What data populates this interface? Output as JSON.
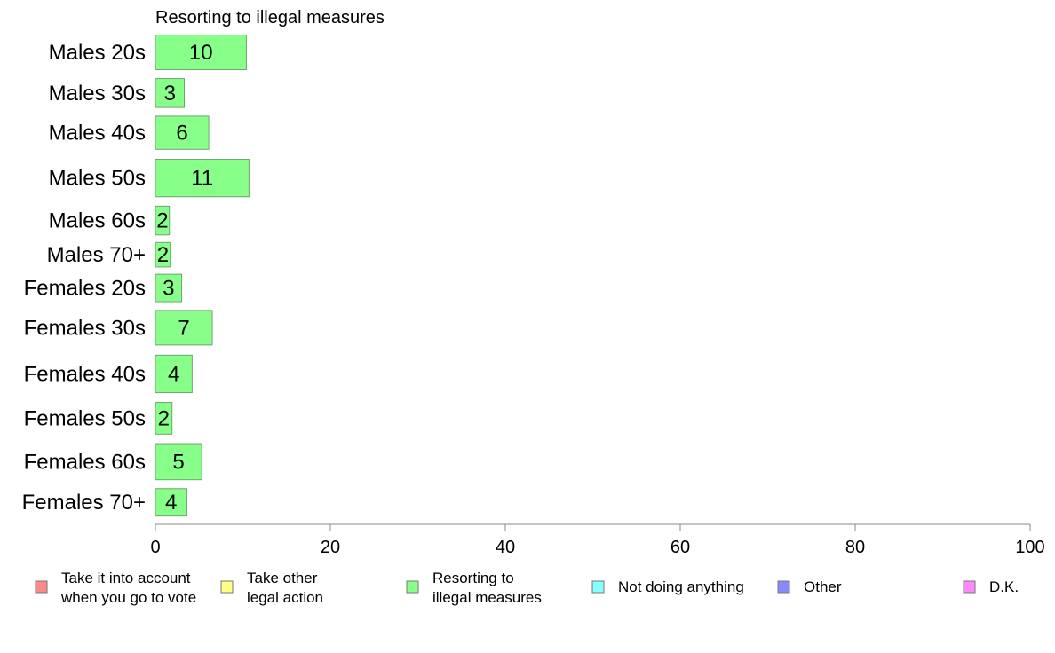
{
  "chart_data": {
    "type": "bar",
    "orientation": "horizontal",
    "title": "Resorting to illegal measures",
    "categories": [
      "Males 20s",
      "Males 30s",
      "Males 40s",
      "Males 50s",
      "Males 60s",
      "Males 70+",
      "Females 20s",
      "Females 30s",
      "Females 40s",
      "Females 50s",
      "Females 60s",
      "Females 70+"
    ],
    "series": [
      {
        "name": "Resorting to illegal measures",
        "color": "#88ff88",
        "values": [
          10.4,
          3.3,
          6.1,
          10.7,
          1.6,
          1.7,
          3.0,
          6.5,
          4.2,
          1.9,
          5.3,
          3.6
        ],
        "labels": [
          "10",
          "3",
          "6",
          "11",
          "2",
          "2",
          "3",
          "7",
          "4",
          "2",
          "5",
          "4"
        ]
      }
    ],
    "row_weights": [
      1.2,
      1.0,
      1.15,
      1.3,
      1.0,
      0.85,
      0.95,
      1.2,
      1.3,
      1.1,
      1.25,
      0.95
    ],
    "xlim": [
      0,
      100
    ],
    "xticks": [
      "0",
      "20",
      "40",
      "60",
      "80",
      "100"
    ],
    "xlabel": "",
    "ylabel": "",
    "grid": false,
    "legend": {
      "placement": "bottom",
      "items": [
        {
          "lines": [
            "Take it into account",
            "when you go to vote"
          ],
          "color": "#ff8888"
        },
        {
          "lines": [
            "Take other",
            "legal action"
          ],
          "color": "#ffff88"
        },
        {
          "lines": [
            "Resorting to",
            "illegal measures"
          ],
          "color": "#88ff88"
        },
        {
          "lines": [
            "Not doing anything"
          ],
          "color": "#88ffff"
        },
        {
          "lines": [
            "Other"
          ],
          "color": "#8888ff"
        },
        {
          "lines": [
            "D.K."
          ],
          "color": "#ff88ff"
        }
      ]
    }
  }
}
